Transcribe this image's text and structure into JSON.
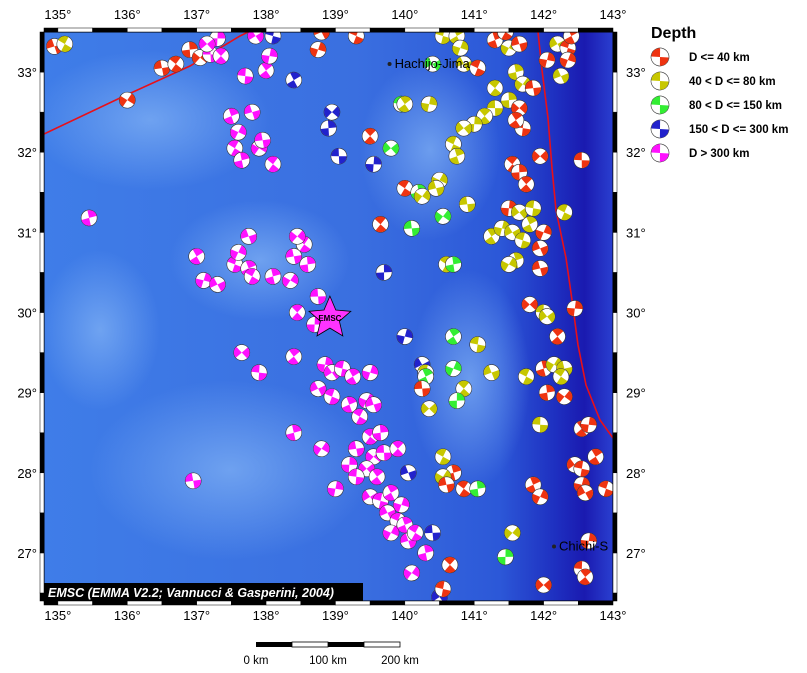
{
  "map": {
    "lon_range": [
      134.8,
      143.0
    ],
    "lat_range": [
      26.4,
      33.5
    ],
    "lon_ticks": [
      "135°",
      "136°",
      "137°",
      "138°",
      "139°",
      "140°",
      "141°",
      "142°",
      "143°"
    ],
    "lat_ticks": [
      "27°",
      "28°",
      "29°",
      "30°",
      "31°",
      "32°",
      "33°"
    ],
    "places": [
      {
        "name": "Hachijo-Jima",
        "lon": 139.78,
        "lat": 33.1
      },
      {
        "name": "Chichi-S",
        "lon": 142.15,
        "lat": 27.08
      }
    ],
    "epicenter": {
      "label": "EMSC",
      "lon": 138.92,
      "lat": 29.93,
      "color": "#ff33ff"
    },
    "plate_boundary_color": "#e8101a",
    "credit": "EMSC (EMMA V2.2; Vannucci & Gasperini, 2004)"
  },
  "legend": {
    "title": "Depth",
    "classes": [
      {
        "label": "D <= 40 km",
        "color": "#ee3311"
      },
      {
        "label": "40 < D <= 80 km",
        "color": "#c7c700"
      },
      {
        "label": "80 < D <= 150 km",
        "color": "#33ee33"
      },
      {
        "label": "150 < D <= 300 km",
        "color": "#2222cc"
      },
      {
        "label": "D > 300 km",
        "color": "#ff11ff"
      }
    ]
  },
  "scale_bar": {
    "labels": [
      "0 km",
      "100 km",
      "200 km"
    ]
  },
  "events": [
    {
      "lon": 134.95,
      "lat": 33.32,
      "class": 0
    },
    {
      "lon": 135.1,
      "lat": 33.35,
      "class": 1
    },
    {
      "lon": 135.45,
      "lat": 31.18,
      "class": 4
    },
    {
      "lon": 136.0,
      "lat": 32.65,
      "class": 0
    },
    {
      "lon": 136.5,
      "lat": 33.05,
      "class": 0
    },
    {
      "lon": 136.7,
      "lat": 33.1,
      "class": 0
    },
    {
      "lon": 136.9,
      "lat": 33.28,
      "class": 0
    },
    {
      "lon": 137.05,
      "lat": 33.18,
      "class": 0
    },
    {
      "lon": 137.2,
      "lat": 33.22,
      "class": 4
    },
    {
      "lon": 137.35,
      "lat": 33.2,
      "class": 4
    },
    {
      "lon": 137.3,
      "lat": 33.42,
      "class": 4
    },
    {
      "lon": 137.15,
      "lat": 33.35,
      "class": 4
    },
    {
      "lon": 137.7,
      "lat": 32.95,
      "class": 4
    },
    {
      "lon": 138.0,
      "lat": 33.02,
      "class": 4
    },
    {
      "lon": 138.05,
      "lat": 33.2,
      "class": 4
    },
    {
      "lon": 137.85,
      "lat": 33.45,
      "class": 4
    },
    {
      "lon": 138.1,
      "lat": 33.45,
      "class": 3
    },
    {
      "lon": 138.4,
      "lat": 32.9,
      "class": 3
    },
    {
      "lon": 138.75,
      "lat": 33.28,
      "class": 0
    },
    {
      "lon": 138.8,
      "lat": 33.5,
      "class": 0
    },
    {
      "lon": 139.3,
      "lat": 33.45,
      "class": 0
    },
    {
      "lon": 137.5,
      "lat": 32.45,
      "class": 4
    },
    {
      "lon": 137.6,
      "lat": 32.25,
      "class": 4
    },
    {
      "lon": 137.8,
      "lat": 32.5,
      "class": 4
    },
    {
      "lon": 137.55,
      "lat": 32.05,
      "class": 4
    },
    {
      "lon": 137.65,
      "lat": 31.9,
      "class": 4
    },
    {
      "lon": 137.9,
      "lat": 32.05,
      "class": 4
    },
    {
      "lon": 137.95,
      "lat": 32.15,
      "class": 4
    },
    {
      "lon": 138.1,
      "lat": 31.85,
      "class": 4
    },
    {
      "lon": 138.9,
      "lat": 32.3,
      "class": 3
    },
    {
      "lon": 138.95,
      "lat": 32.5,
      "class": 3
    },
    {
      "lon": 139.05,
      "lat": 31.95,
      "class": 3
    },
    {
      "lon": 139.5,
      "lat": 32.2,
      "class": 0
    },
    {
      "lon": 139.55,
      "lat": 31.85,
      "class": 3
    },
    {
      "lon": 139.8,
      "lat": 32.05,
      "class": 2
    },
    {
      "lon": 139.95,
      "lat": 32.6,
      "class": 2
    },
    {
      "lon": 140.0,
      "lat": 32.6,
      "class": 1
    },
    {
      "lon": 140.35,
      "lat": 32.6,
      "class": 1
    },
    {
      "lon": 140.4,
      "lat": 33.1,
      "class": 2
    },
    {
      "lon": 140.55,
      "lat": 33.45,
      "class": 1
    },
    {
      "lon": 140.75,
      "lat": 33.45,
      "class": 1
    },
    {
      "lon": 140.8,
      "lat": 33.3,
      "class": 1
    },
    {
      "lon": 140.85,
      "lat": 33.1,
      "class": 1
    },
    {
      "lon": 141.05,
      "lat": 33.05,
      "class": 0
    },
    {
      "lon": 141.3,
      "lat": 33.4,
      "class": 0
    },
    {
      "lon": 141.5,
      "lat": 33.3,
      "class": 1
    },
    {
      "lon": 141.65,
      "lat": 33.35,
      "class": 0
    },
    {
      "lon": 141.45,
      "lat": 33.5,
      "class": 0
    },
    {
      "lon": 141.6,
      "lat": 33.0,
      "class": 1
    },
    {
      "lon": 141.7,
      "lat": 32.85,
      "class": 1
    },
    {
      "lon": 141.85,
      "lat": 32.8,
      "class": 0
    },
    {
      "lon": 141.3,
      "lat": 32.8,
      "class": 1
    },
    {
      "lon": 141.5,
      "lat": 32.65,
      "class": 1
    },
    {
      "lon": 141.65,
      "lat": 32.55,
      "class": 0
    },
    {
      "lon": 141.3,
      "lat": 32.55,
      "class": 1
    },
    {
      "lon": 141.15,
      "lat": 32.45,
      "class": 1
    },
    {
      "lon": 141.0,
      "lat": 32.35,
      "class": 1
    },
    {
      "lon": 140.85,
      "lat": 32.3,
      "class": 1
    },
    {
      "lon": 141.7,
      "lat": 32.3,
      "class": 0
    },
    {
      "lon": 141.6,
      "lat": 32.4,
      "class": 0
    },
    {
      "lon": 142.05,
      "lat": 33.15,
      "class": 0
    },
    {
      "lon": 142.2,
      "lat": 33.35,
      "class": 1
    },
    {
      "lon": 142.35,
      "lat": 33.3,
      "class": 0
    },
    {
      "lon": 142.4,
      "lat": 33.45,
      "class": 0
    },
    {
      "lon": 142.35,
      "lat": 33.15,
      "class": 0
    },
    {
      "lon": 142.25,
      "lat": 32.95,
      "class": 1
    },
    {
      "lon": 140.7,
      "lat": 32.1,
      "class": 1
    },
    {
      "lon": 140.75,
      "lat": 31.95,
      "class": 1
    },
    {
      "lon": 140.5,
      "lat": 31.65,
      "class": 1
    },
    {
      "lon": 140.45,
      "lat": 31.55,
      "class": 1
    },
    {
      "lon": 140.0,
      "lat": 31.55,
      "class": 0
    },
    {
      "lon": 140.2,
      "lat": 31.5,
      "class": 2
    },
    {
      "lon": 140.25,
      "lat": 31.45,
      "class": 1
    },
    {
      "lon": 140.9,
      "lat": 31.35,
      "class": 1
    },
    {
      "lon": 141.55,
      "lat": 31.85,
      "class": 0
    },
    {
      "lon": 141.65,
      "lat": 31.75,
      "class": 0
    },
    {
      "lon": 141.95,
      "lat": 31.95,
      "class": 0
    },
    {
      "lon": 142.55,
      "lat": 31.9,
      "class": 0
    },
    {
      "lon": 141.75,
      "lat": 31.6,
      "class": 0
    },
    {
      "lon": 141.5,
      "lat": 31.3,
      "class": 0
    },
    {
      "lon": 141.65,
      "lat": 31.25,
      "class": 1
    },
    {
      "lon": 141.85,
      "lat": 31.3,
      "class": 1
    },
    {
      "lon": 141.25,
      "lat": 30.95,
      "class": 1
    },
    {
      "lon": 141.4,
      "lat": 31.05,
      "class": 1
    },
    {
      "lon": 141.55,
      "lat": 31.0,
      "class": 1
    },
    {
      "lon": 141.7,
      "lat": 30.9,
      "class": 1
    },
    {
      "lon": 141.8,
      "lat": 31.1,
      "class": 1
    },
    {
      "lon": 142.0,
      "lat": 31.0,
      "class": 0
    },
    {
      "lon": 141.95,
      "lat": 30.8,
      "class": 0
    },
    {
      "lon": 142.3,
      "lat": 31.25,
      "class": 1
    },
    {
      "lon": 141.6,
      "lat": 30.65,
      "class": 1
    },
    {
      "lon": 141.5,
      "lat": 30.6,
      "class": 1
    },
    {
      "lon": 141.95,
      "lat": 30.55,
      "class": 0
    },
    {
      "lon": 140.6,
      "lat": 30.6,
      "class": 1
    },
    {
      "lon": 140.7,
      "lat": 30.6,
      "class": 2
    },
    {
      "lon": 140.55,
      "lat": 31.2,
      "class": 2
    },
    {
      "lon": 140.1,
      "lat": 31.05,
      "class": 2
    },
    {
      "lon": 139.65,
      "lat": 31.1,
      "class": 0
    },
    {
      "lon": 139.7,
      "lat": 30.5,
      "class": 3
    },
    {
      "lon": 141.8,
      "lat": 30.1,
      "class": 0
    },
    {
      "lon": 142.0,
      "lat": 30.0,
      "class": 1
    },
    {
      "lon": 142.2,
      "lat": 29.7,
      "class": 0
    },
    {
      "lon": 142.45,
      "lat": 30.05,
      "class": 0
    },
    {
      "lon": 142.05,
      "lat": 29.95,
      "class": 1
    },
    {
      "lon": 141.05,
      "lat": 29.6,
      "class": 1
    },
    {
      "lon": 140.7,
      "lat": 29.7,
      "class": 2
    },
    {
      "lon": 140.0,
      "lat": 29.7,
      "class": 3
    },
    {
      "lon": 140.25,
      "lat": 29.35,
      "class": 3
    },
    {
      "lon": 140.3,
      "lat": 29.25,
      "class": 1
    },
    {
      "lon": 140.3,
      "lat": 29.2,
      "class": 2
    },
    {
      "lon": 140.7,
      "lat": 29.3,
      "class": 2
    },
    {
      "lon": 141.25,
      "lat": 29.25,
      "class": 1
    },
    {
      "lon": 141.75,
      "lat": 29.2,
      "class": 1
    },
    {
      "lon": 142.0,
      "lat": 29.3,
      "class": 0
    },
    {
      "lon": 142.15,
      "lat": 29.35,
      "class": 1
    },
    {
      "lon": 142.3,
      "lat": 29.3,
      "class": 1
    },
    {
      "lon": 142.25,
      "lat": 29.2,
      "class": 1
    },
    {
      "lon": 142.05,
      "lat": 29.0,
      "class": 0
    },
    {
      "lon": 142.3,
      "lat": 28.95,
      "class": 0
    },
    {
      "lon": 140.25,
      "lat": 29.05,
      "class": 0
    },
    {
      "lon": 140.85,
      "lat": 29.05,
      "class": 1
    },
    {
      "lon": 140.75,
      "lat": 28.9,
      "class": 2
    },
    {
      "lon": 140.35,
      "lat": 28.8,
      "class": 1
    },
    {
      "lon": 141.95,
      "lat": 28.6,
      "class": 1
    },
    {
      "lon": 142.55,
      "lat": 28.55,
      "class": 0
    },
    {
      "lon": 142.65,
      "lat": 28.6,
      "class": 0
    },
    {
      "lon": 142.45,
      "lat": 28.1,
      "class": 0
    },
    {
      "lon": 142.55,
      "lat": 28.05,
      "class": 0
    },
    {
      "lon": 142.75,
      "lat": 28.2,
      "class": 0
    },
    {
      "lon": 142.55,
      "lat": 27.85,
      "class": 0
    },
    {
      "lon": 142.6,
      "lat": 27.75,
      "class": 0
    },
    {
      "lon": 142.9,
      "lat": 27.8,
      "class": 0
    },
    {
      "lon": 141.85,
      "lat": 27.85,
      "class": 0
    },
    {
      "lon": 141.95,
      "lat": 27.7,
      "class": 0
    },
    {
      "lon": 140.05,
      "lat": 28.0,
      "class": 3
    },
    {
      "lon": 140.55,
      "lat": 28.2,
      "class": 1
    },
    {
      "lon": 140.7,
      "lat": 28.0,
      "class": 0
    },
    {
      "lon": 140.55,
      "lat": 27.95,
      "class": 1
    },
    {
      "lon": 140.6,
      "lat": 27.85,
      "class": 0
    },
    {
      "lon": 140.85,
      "lat": 27.8,
      "class": 0
    },
    {
      "lon": 141.05,
      "lat": 27.8,
      "class": 2
    },
    {
      "lon": 141.55,
      "lat": 27.25,
      "class": 1
    },
    {
      "lon": 140.4,
      "lat": 27.25,
      "class": 3
    },
    {
      "lon": 140.65,
      "lat": 26.85,
      "class": 0
    },
    {
      "lon": 141.45,
      "lat": 26.95,
      "class": 2
    },
    {
      "lon": 142.0,
      "lat": 26.6,
      "class": 0
    },
    {
      "lon": 142.55,
      "lat": 26.8,
      "class": 0
    },
    {
      "lon": 142.6,
      "lat": 26.7,
      "class": 0
    },
    {
      "lon": 142.65,
      "lat": 27.15,
      "class": 0
    },
    {
      "lon": 140.5,
      "lat": 26.45,
      "class": 3
    },
    {
      "lon": 140.55,
      "lat": 26.55,
      "class": 0
    },
    {
      "lon": 137.0,
      "lat": 30.7,
      "class": 4
    },
    {
      "lon": 137.1,
      "lat": 30.4,
      "class": 4
    },
    {
      "lon": 137.3,
      "lat": 30.35,
      "class": 4
    },
    {
      "lon": 137.55,
      "lat": 30.6,
      "class": 4
    },
    {
      "lon": 137.75,
      "lat": 30.55,
      "class": 4
    },
    {
      "lon": 137.6,
      "lat": 30.75,
      "class": 4
    },
    {
      "lon": 137.75,
      "lat": 30.95,
      "class": 4
    },
    {
      "lon": 137.8,
      "lat": 30.45,
      "class": 4
    },
    {
      "lon": 138.1,
      "lat": 30.45,
      "class": 4
    },
    {
      "lon": 138.35,
      "lat": 30.4,
      "class": 4
    },
    {
      "lon": 138.4,
      "lat": 30.7,
      "class": 4
    },
    {
      "lon": 138.55,
      "lat": 30.85,
      "class": 4
    },
    {
      "lon": 138.6,
      "lat": 30.6,
      "class": 4
    },
    {
      "lon": 138.45,
      "lat": 30.95,
      "class": 4
    },
    {
      "lon": 138.75,
      "lat": 30.2,
      "class": 4
    },
    {
      "lon": 138.45,
      "lat": 30.0,
      "class": 4
    },
    {
      "lon": 138.7,
      "lat": 29.85,
      "class": 4
    },
    {
      "lon": 137.65,
      "lat": 29.5,
      "class": 4
    },
    {
      "lon": 137.9,
      "lat": 29.25,
      "class": 4
    },
    {
      "lon": 138.4,
      "lat": 29.45,
      "class": 4
    },
    {
      "lon": 138.85,
      "lat": 29.35,
      "class": 4
    },
    {
      "lon": 138.95,
      "lat": 29.25,
      "class": 4
    },
    {
      "lon": 139.1,
      "lat": 29.3,
      "class": 4
    },
    {
      "lon": 139.25,
      "lat": 29.2,
      "class": 4
    },
    {
      "lon": 139.5,
      "lat": 29.25,
      "class": 4
    },
    {
      "lon": 138.75,
      "lat": 29.05,
      "class": 4
    },
    {
      "lon": 138.95,
      "lat": 28.95,
      "class": 4
    },
    {
      "lon": 139.2,
      "lat": 28.85,
      "class": 4
    },
    {
      "lon": 139.45,
      "lat": 28.9,
      "class": 4
    },
    {
      "lon": 139.55,
      "lat": 28.85,
      "class": 4
    },
    {
      "lon": 139.35,
      "lat": 28.7,
      "class": 4
    },
    {
      "lon": 138.4,
      "lat": 28.5,
      "class": 4
    },
    {
      "lon": 138.8,
      "lat": 28.3,
      "class": 4
    },
    {
      "lon": 139.3,
      "lat": 28.3,
      "class": 4
    },
    {
      "lon": 139.5,
      "lat": 28.45,
      "class": 4
    },
    {
      "lon": 139.65,
      "lat": 28.5,
      "class": 4
    },
    {
      "lon": 139.55,
      "lat": 28.2,
      "class": 4
    },
    {
      "lon": 139.7,
      "lat": 28.25,
      "class": 4
    },
    {
      "lon": 139.9,
      "lat": 28.3,
      "class": 4
    },
    {
      "lon": 139.2,
      "lat": 28.1,
      "class": 4
    },
    {
      "lon": 139.45,
      "lat": 28.05,
      "class": 4
    },
    {
      "lon": 139.3,
      "lat": 27.95,
      "class": 4
    },
    {
      "lon": 139.6,
      "lat": 27.95,
      "class": 4
    },
    {
      "lon": 139.0,
      "lat": 27.8,
      "class": 4
    },
    {
      "lon": 139.5,
      "lat": 27.7,
      "class": 4
    },
    {
      "lon": 139.65,
      "lat": 27.65,
      "class": 4
    },
    {
      "lon": 139.8,
      "lat": 27.75,
      "class": 4
    },
    {
      "lon": 139.95,
      "lat": 27.6,
      "class": 4
    },
    {
      "lon": 139.75,
      "lat": 27.5,
      "class": 4
    },
    {
      "lon": 139.9,
      "lat": 27.4,
      "class": 4
    },
    {
      "lon": 140.0,
      "lat": 27.35,
      "class": 4
    },
    {
      "lon": 139.8,
      "lat": 27.25,
      "class": 4
    },
    {
      "lon": 140.05,
      "lat": 27.15,
      "class": 4
    },
    {
      "lon": 140.15,
      "lat": 27.25,
      "class": 4
    },
    {
      "lon": 140.3,
      "lat": 27.0,
      "class": 4
    },
    {
      "lon": 140.1,
      "lat": 26.75,
      "class": 4
    },
    {
      "lon": 136.95,
      "lat": 27.9,
      "class": 4
    }
  ]
}
